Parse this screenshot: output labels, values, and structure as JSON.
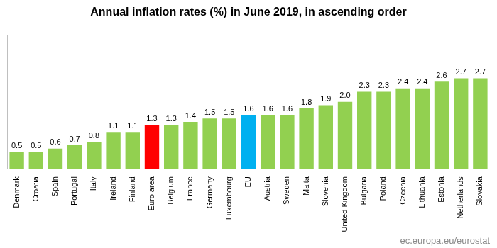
{
  "chart_data": {
    "type": "bar",
    "title": "Annual inflation rates (%) in June 2019, in ascending order",
    "source": "ec.europa.eu/eurostat",
    "categories": [
      "Denmark",
      "Croatia",
      "Spain",
      "Portugal",
      "Italy",
      "Ireland",
      "Finland",
      "Euro area",
      "Belgium",
      "France",
      "Germany",
      "Luxembourg",
      "EU",
      "Austria",
      "Sweden",
      "Malta",
      "Slovenia",
      "United Kingdom",
      "Bulgaria",
      "Poland",
      "Czechia",
      "Lithuania",
      "Estonia",
      "Netherlands",
      "Slovakia"
    ],
    "values": [
      0.5,
      0.5,
      0.6,
      0.7,
      0.8,
      1.1,
      1.1,
      1.3,
      1.3,
      1.4,
      1.5,
      1.5,
      1.6,
      1.6,
      1.6,
      1.8,
      1.9,
      2.0,
      2.3,
      2.3,
      2.4,
      2.4,
      2.6,
      2.7,
      2.7
    ],
    "value_labels": [
      "0.5",
      "0.5",
      "0.6",
      "0.7",
      "0.8",
      "1.1",
      "1.1",
      "1.3",
      "1.3",
      "1.4",
      "1.5",
      "1.5",
      "1.6",
      "1.6",
      "1.6",
      "1.8",
      "1.9",
      "2.0",
      "2.3",
      "2.3",
      "2.4",
      "2.4",
      "2.6",
      "2.7",
      "2.7"
    ],
    "colors": [
      "#92d050",
      "#92d050",
      "#92d050",
      "#92d050",
      "#92d050",
      "#92d050",
      "#92d050",
      "#ff0000",
      "#92d050",
      "#92d050",
      "#92d050",
      "#92d050",
      "#00b0f0",
      "#92d050",
      "#92d050",
      "#92d050",
      "#92d050",
      "#92d050",
      "#92d050",
      "#92d050",
      "#92d050",
      "#92d050",
      "#92d050",
      "#92d050",
      "#92d050"
    ],
    "ylim": [
      0,
      4
    ],
    "grid": false,
    "data_labels": true,
    "tick_labels": "x"
  }
}
